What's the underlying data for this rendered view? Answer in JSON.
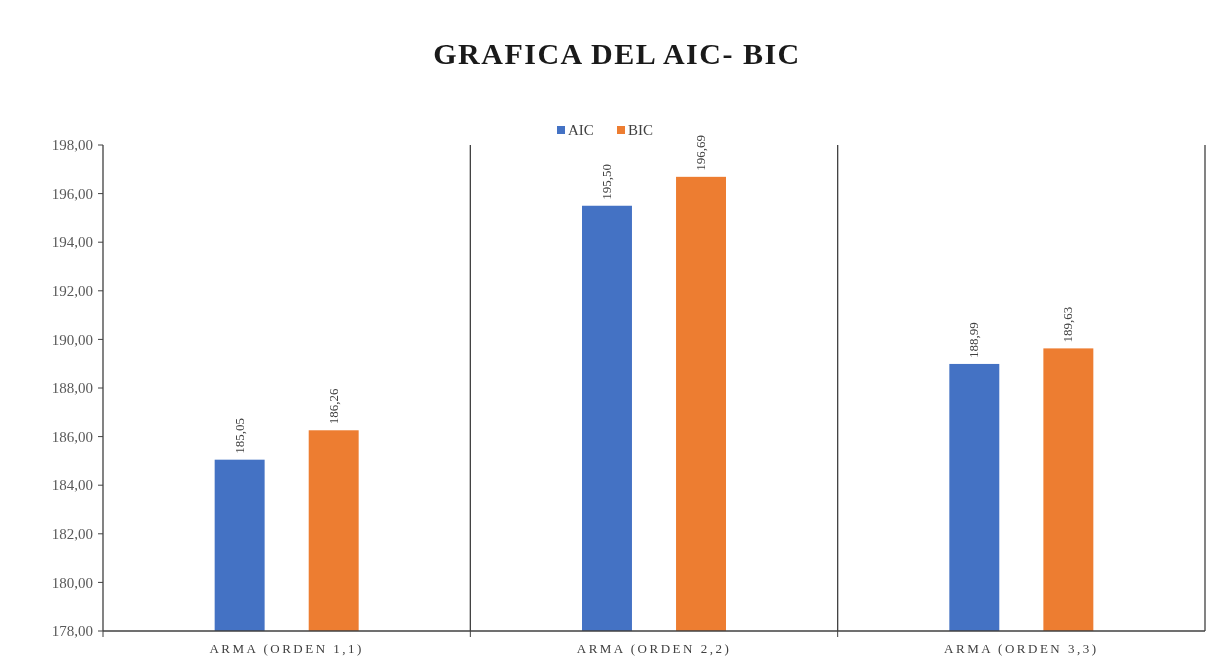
{
  "chart_data": {
    "type": "bar",
    "title": "GRAFICA DEL AIC- BIC",
    "categories": [
      "ARMA (ORDEN 1,1)",
      "ARMA (ORDEN 2,2)",
      "ARMA (ORDEN 3,3)"
    ],
    "series": [
      {
        "name": "AIC",
        "color": "#4472c4",
        "values": [
          185.05,
          195.5,
          188.99
        ],
        "value_labels": [
          "185,05",
          "195,50",
          "188,99"
        ]
      },
      {
        "name": "BIC",
        "color": "#ed7d31",
        "values": [
          186.26,
          196.69,
          189.63
        ],
        "value_labels": [
          "186,26",
          "196,69",
          "189,63"
        ]
      }
    ],
    "ylim": [
      178,
      198
    ],
    "yticks": [
      {
        "value": 178,
        "label": "178,00"
      },
      {
        "value": 180,
        "label": "180,00"
      },
      {
        "value": 182,
        "label": "182,00"
      },
      {
        "value": 184,
        "label": "184,00"
      },
      {
        "value": 186,
        "label": "186,00"
      },
      {
        "value": 188,
        "label": "188,00"
      },
      {
        "value": 190,
        "label": "190,00"
      },
      {
        "value": 192,
        "label": "192,00"
      },
      {
        "value": 194,
        "label": "194,00"
      },
      {
        "value": 196,
        "label": "196,00"
      },
      {
        "value": 198,
        "label": "198,00"
      }
    ],
    "grid": "x",
    "legend": "top"
  }
}
